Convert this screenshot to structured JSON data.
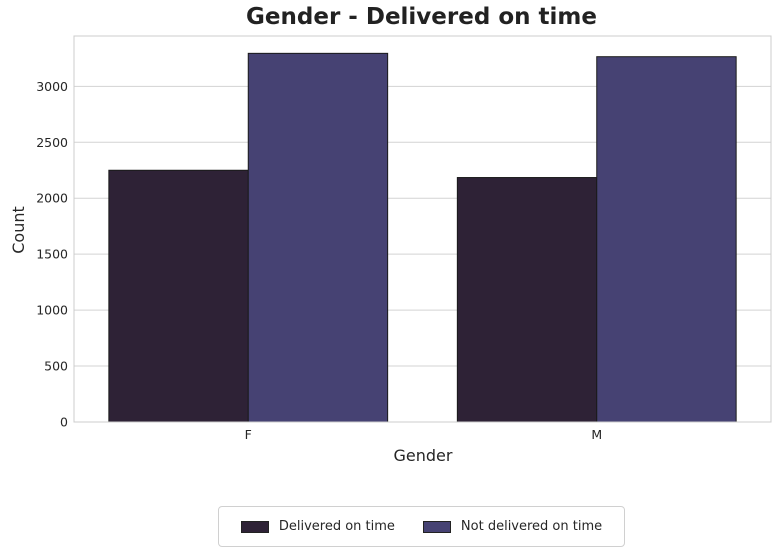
{
  "chart_data": {
    "type": "bar",
    "title": "Gender - Delivered on time",
    "xlabel": "Gender",
    "ylabel": "Count",
    "categories": [
      "F",
      "M"
    ],
    "series": [
      {
        "name": "Delivered on time",
        "values": [
          2250,
          2185
        ],
        "color": "#2e2236"
      },
      {
        "name": "Not delivered on time",
        "values": [
          3295,
          3265
        ],
        "color": "#464273"
      }
    ],
    "ylim": [
      0,
      3450
    ],
    "yticks": [
      0,
      500,
      1000,
      1500,
      2000,
      2500,
      3000
    ],
    "grid": true,
    "legend_position": "bottom-center"
  }
}
